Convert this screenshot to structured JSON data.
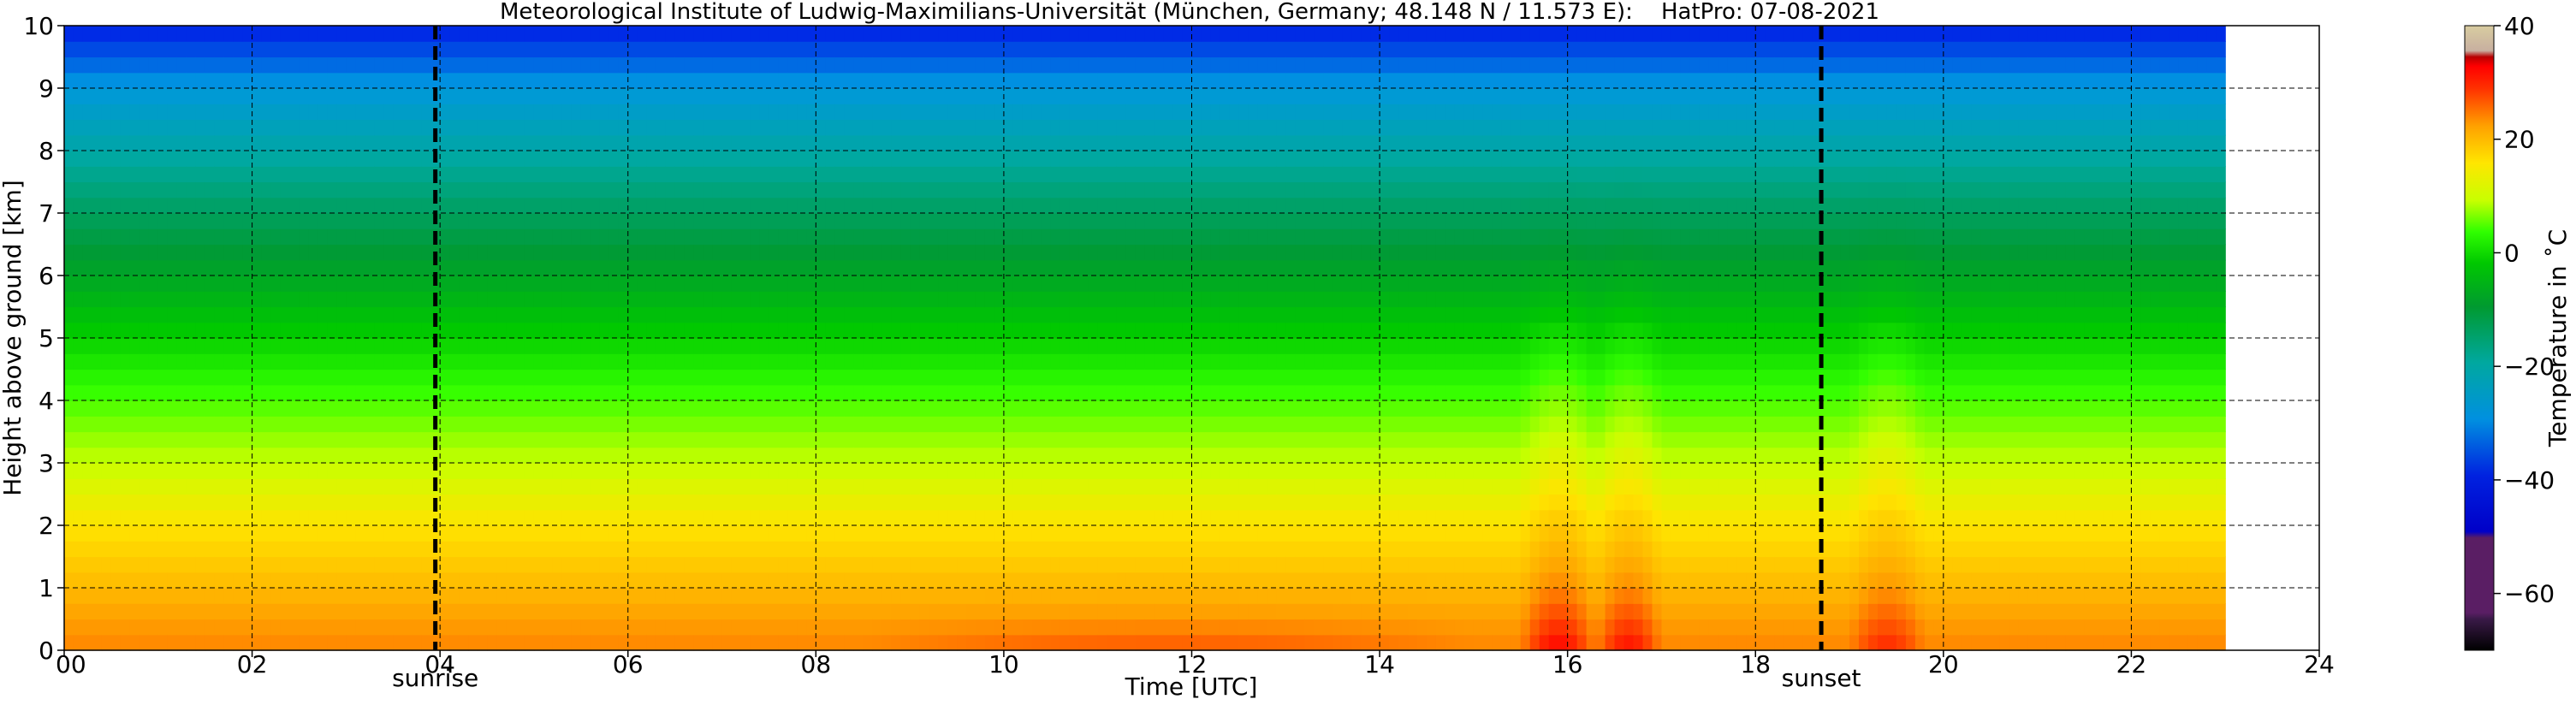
{
  "chart_data": {
    "type": "heatmap",
    "title": "Meteorological Institute of Ludwig-Maximilians-Universität (München, Germany; 48.148 N / 11.573 E):    HatPro: 07-08-2021",
    "xlabel": "Time [UTC]",
    "ylabel": "Height above ground [km]",
    "xlim": [
      0,
      24
    ],
    "ylim": [
      0,
      10
    ],
    "data_extent_x": [
      0,
      23
    ],
    "x_ticks": [
      "00",
      "02",
      "04",
      "06",
      "08",
      "10",
      "12",
      "14",
      "16",
      "18",
      "20",
      "22",
      "24"
    ],
    "y_ticks": [
      "0",
      "1",
      "2",
      "3",
      "4",
      "5",
      "6",
      "7",
      "8",
      "9",
      "10"
    ],
    "grid": true,
    "markers": [
      {
        "x": 3.95,
        "label": "sunrise",
        "style": "dashed"
      },
      {
        "x": 18.7,
        "label": "sunset",
        "style": "dashed"
      }
    ],
    "colorbar": {
      "label": "Temperature in ˚C",
      "range": [
        -70,
        40
      ],
      "ticks": [
        "40",
        "20",
        "0",
        "−20",
        "−40",
        "−60"
      ]
    },
    "description_profile": {
      "heights_km": [
        0,
        0.5,
        1,
        2,
        3,
        4,
        5,
        6,
        6.5,
        7,
        8,
        9,
        9.5,
        10
      ],
      "temperatures_c": [
        19,
        17,
        14,
        9,
        3,
        -3,
        -9,
        -16,
        -19,
        -22,
        -29,
        -37,
        -43,
        -48
      ]
    },
    "warm_events": [
      {
        "t_start": 8.5,
        "t_end": 15.0,
        "max_anomaly_c": 4
      },
      {
        "t_start": 15.5,
        "t_end": 16.3,
        "max_anomaly_c": 10
      },
      {
        "t_start": 16.3,
        "t_end": 17.0,
        "max_anomaly_c": 9
      },
      {
        "t_start": 19.0,
        "t_end": 19.8,
        "max_anomaly_c": 7
      }
    ]
  },
  "colors": {
    "background": "#ffffff",
    "axis": "#000000",
    "grid": "#000000"
  }
}
